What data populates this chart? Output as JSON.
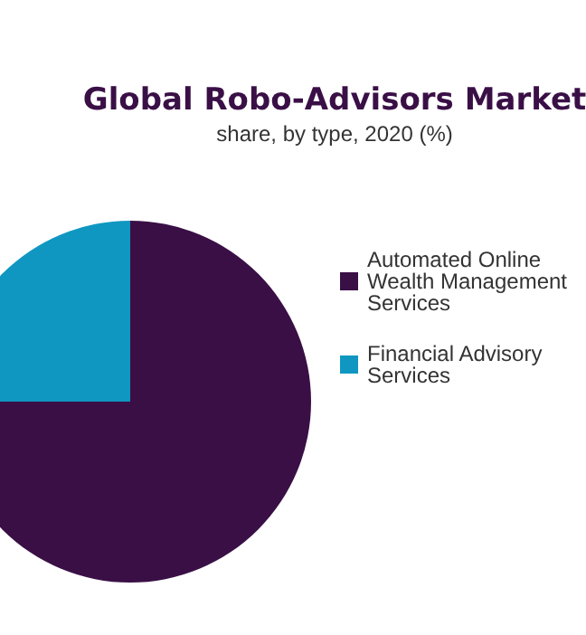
{
  "chart_data": {
    "type": "pie",
    "title": "Global Robo-Advisors Market",
    "subtitle": "share, by type, 2020 (%)",
    "categories": [
      "Automated Online Wealth Management Services",
      "Financial Advisory Services"
    ],
    "values": [
      75,
      25
    ],
    "colors": [
      "#3a0f46",
      "#0f97c1"
    ],
    "legend": "right"
  }
}
